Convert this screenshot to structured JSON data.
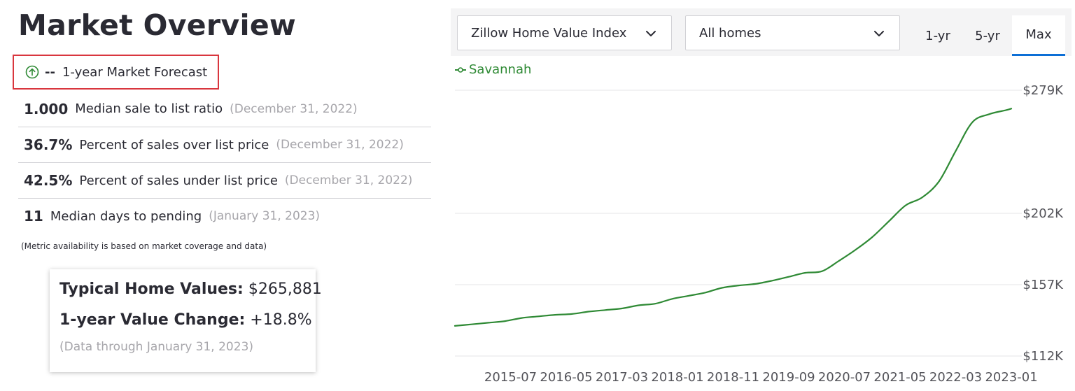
{
  "page": {
    "title": "Market Overview",
    "forecast": {
      "value": "--",
      "label": "1-year Market Forecast"
    },
    "metrics": [
      {
        "value": "1.000",
        "label": "Median sale to list ratio",
        "date": "(December 31, 2022)"
      },
      {
        "value": "36.7%",
        "label": "Percent of sales over list price",
        "date": "(December 31, 2022)"
      },
      {
        "value": "42.5%",
        "label": "Percent of sales under list price",
        "date": "(December 31, 2022)"
      },
      {
        "value": "11",
        "label": "Median days to pending",
        "date": "(January 31, 2023)"
      }
    ],
    "note": "(Metric availability is based on market coverage and data)",
    "card": {
      "typical_label": "Typical Home Values:",
      "typical_value": "$265,881",
      "change_label": "1-year Value Change:",
      "change_value": "+18.8%",
      "data_through": "(Data through January 31, 2023)"
    }
  },
  "controls": {
    "index_select": "Zillow Home Value Index",
    "home_type_select": "All homes",
    "tabs": [
      "1-yr",
      "5-yr",
      "Max"
    ],
    "active_tab": "Max"
  },
  "colors": {
    "line": "#2f8a35",
    "accent": "#0d6fd6",
    "forecast_box": "#d9363e",
    "grid": "#e4e4e7"
  },
  "icons": {
    "forecast": "arrow-up-circle-icon",
    "dropdown": "chevron-down-icon",
    "legend": "line-marker-icon"
  },
  "chart_data": {
    "type": "line",
    "series": [
      {
        "name": "Savannah",
        "x": [
          "2014-09",
          "2014-12",
          "2015-03",
          "2015-06",
          "2015-09",
          "2015-12",
          "2016-03",
          "2016-06",
          "2016-09",
          "2016-12",
          "2017-03",
          "2017-06",
          "2017-09",
          "2017-12",
          "2018-03",
          "2018-06",
          "2018-09",
          "2018-12",
          "2019-03",
          "2019-06",
          "2019-09",
          "2019-12",
          "2020-03",
          "2020-06",
          "2020-09",
          "2020-12",
          "2021-03",
          "2021-06",
          "2021-09",
          "2021-12",
          "2022-03",
          "2022-06",
          "2022-09",
          "2022-12",
          "2023-01"
        ],
        "values": [
          131,
          132,
          133,
          134,
          136,
          137,
          138,
          138.5,
          140,
          141,
          142,
          144,
          145,
          148,
          150,
          152,
          155,
          156.5,
          157.5,
          159.5,
          162,
          164.5,
          165.5,
          172,
          179,
          187,
          197,
          207,
          212,
          222,
          241,
          259,
          264,
          266.5,
          267.5
        ]
      }
    ],
    "x_ticks": [
      "2015-07",
      "2016-05",
      "2017-03",
      "2018-01",
      "2018-11",
      "2019-09",
      "2020-07",
      "2021-05",
      "2022-03",
      "2023-01"
    ],
    "y_ticks": [
      {
        "value": 112,
        "label": "$112K"
      },
      {
        "value": 157,
        "label": "$157K"
      },
      {
        "value": 202,
        "label": "$202K"
      },
      {
        "value": 279,
        "label": "$279K"
      }
    ],
    "x_range": [
      "2014-09",
      "2023-02"
    ],
    "legend_position": "top-left",
    "grid": "horizontal"
  }
}
